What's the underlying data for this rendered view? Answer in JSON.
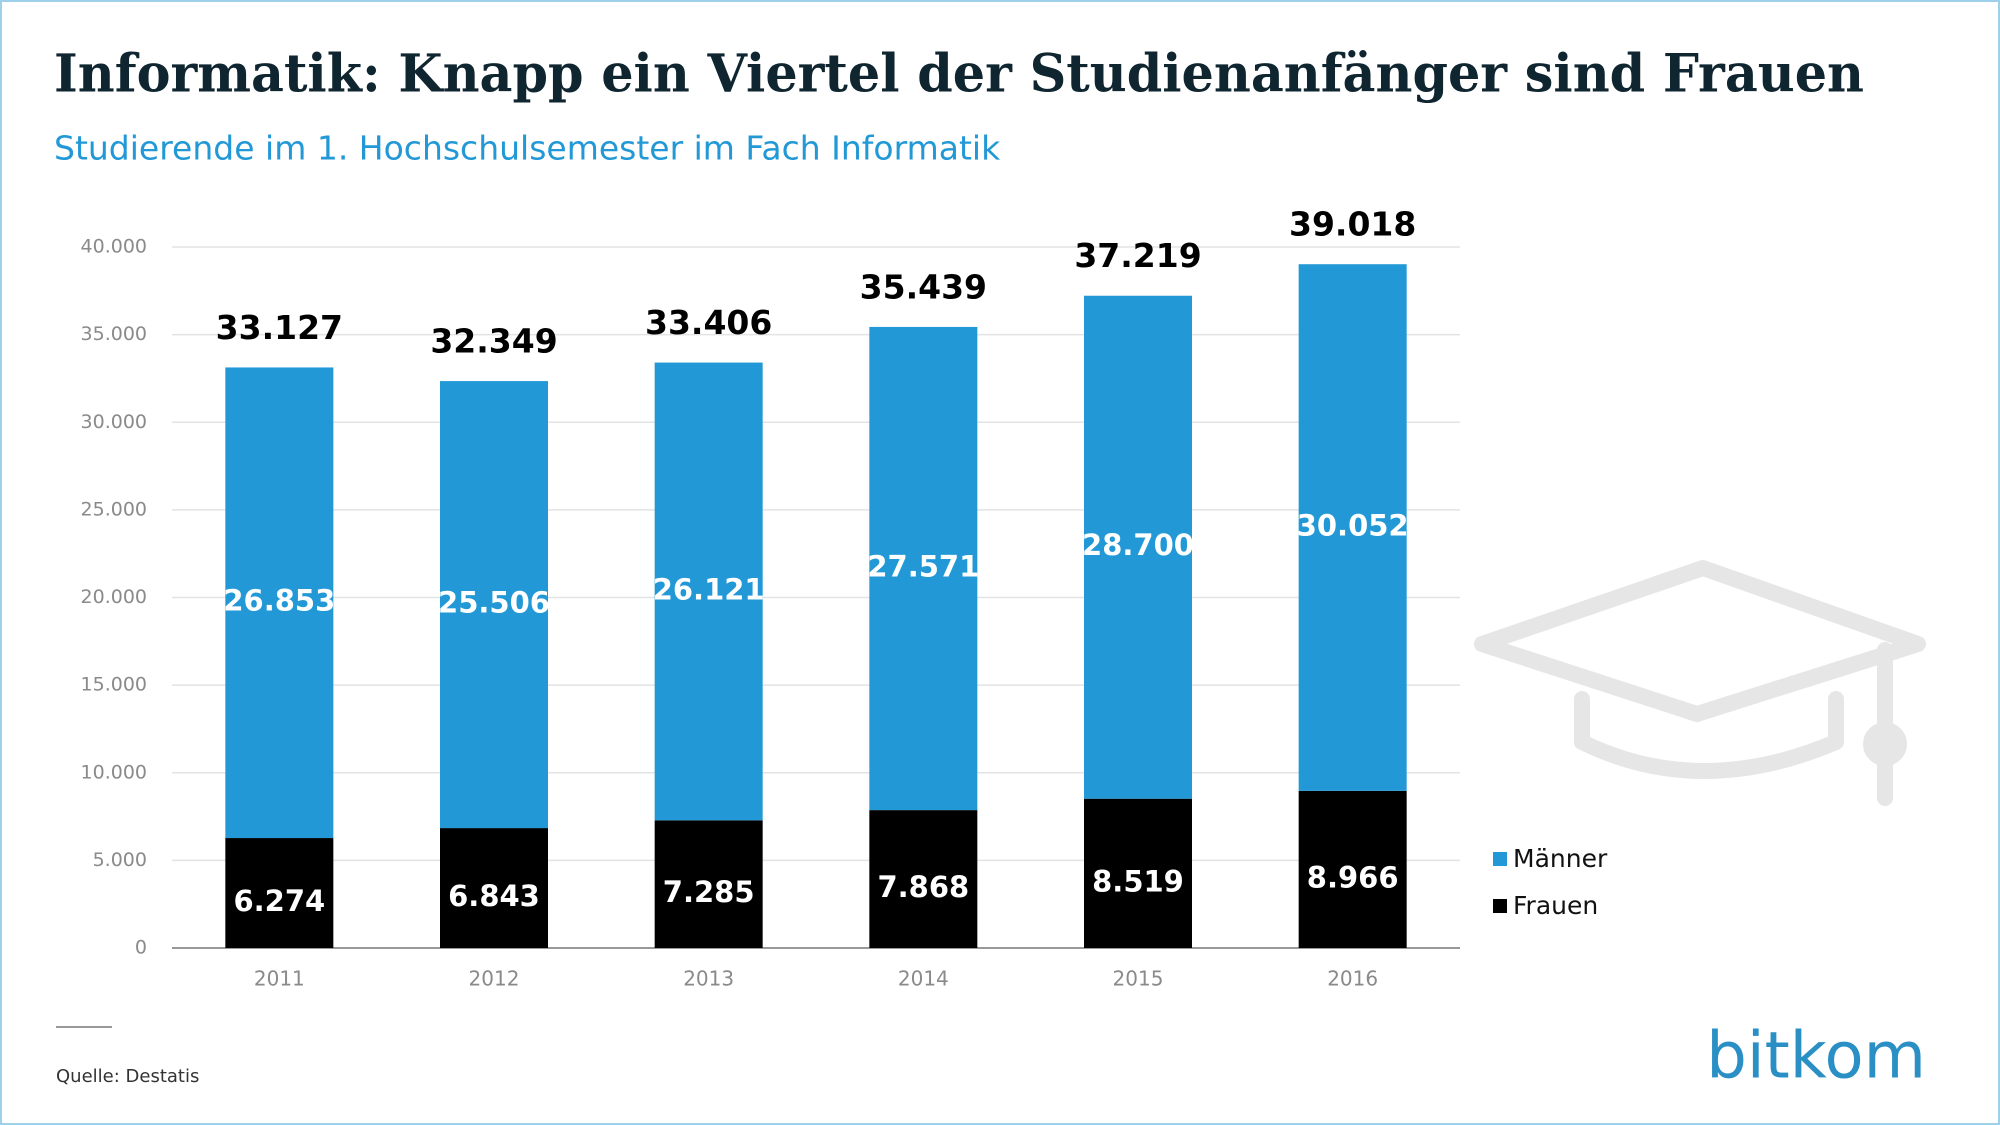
{
  "chart_data": {
    "type": "stacked-bar",
    "title": "Informatik: Knapp ein Viertel der Studienanfänger sind Frauen",
    "subtitle": "Studierende im 1. Hochschulsemester im Fach Informatik",
    "categories": [
      "2011",
      "2012",
      "2013",
      "2014",
      "2015",
      "2016"
    ],
    "series": [
      {
        "name": "Frauen",
        "color": "#000000",
        "values": [
          6274,
          6843,
          7285,
          7868,
          8519,
          8966
        ],
        "value_labels": [
          "6.274",
          "6.843",
          "7.285",
          "7.868",
          "8.519",
          "8.966"
        ]
      },
      {
        "name": "Männer",
        "color": "#2299d6",
        "values": [
          26853,
          25506,
          26121,
          27571,
          28700,
          30052
        ],
        "value_labels": [
          "26.853",
          "25.506",
          "26.121",
          "27.571",
          "28.700",
          "30.052"
        ]
      }
    ],
    "totals": {
      "values": [
        33127,
        32349,
        33406,
        35439,
        37219,
        39018
      ],
      "value_labels": [
        "33.127",
        "32.349",
        "33.406",
        "35.439",
        "37.219",
        "39.018"
      ]
    },
    "ylim": [
      0,
      40000
    ],
    "yticks": [
      0,
      {
        "value": 5000,
        "label": "5.000"
      },
      {
        "value": 10000,
        "label": "10.000"
      },
      {
        "value": 15000,
        "label": "15.000"
      },
      {
        "value": 20000,
        "label": "20.000"
      },
      {
        "value": 25000,
        "label": "25.000"
      },
      {
        "value": 30000,
        "label": "30.000"
      },
      {
        "value": 35000,
        "label": "35.000"
      },
      {
        "value": 40000,
        "label": "40.000"
      }
    ],
    "grid": true,
    "legend": "right",
    "source": "Quelle: Destatis",
    "brand": "bitkom"
  }
}
